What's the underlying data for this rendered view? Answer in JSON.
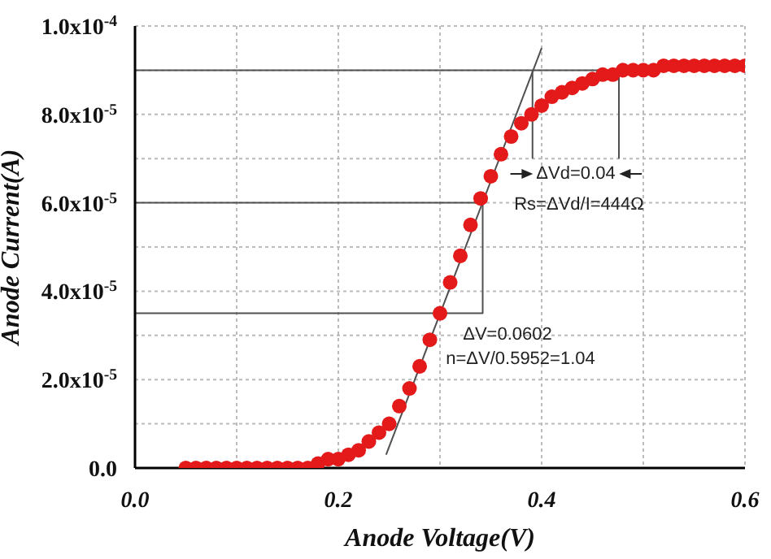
{
  "chart_data": {
    "type": "scatter",
    "xlabel": "Anode Voltage(V)",
    "ylabel": "Anode Current(A)",
    "xlim": [
      0,
      0.6
    ],
    "ylim": [
      0,
      0.0001
    ],
    "xticks": [
      {
        "value": 0,
        "label": "0.0"
      },
      {
        "value": 0.1,
        "label": null
      },
      {
        "value": 0.2,
        "label": "0.2"
      },
      {
        "value": 0.3,
        "label": null
      },
      {
        "value": 0.4,
        "label": "0.4"
      },
      {
        "value": 0.5,
        "label": null
      },
      {
        "value": 0.6,
        "label": "0.6"
      }
    ],
    "yticks": [
      {
        "value": 0,
        "label": "0.0"
      },
      {
        "value": 1e-05,
        "label": null
      },
      {
        "value": 2e-05,
        "label": "2.0x10$^{-5}$"
      },
      {
        "value": 3e-05,
        "label": null
      },
      {
        "value": 4e-05,
        "label": "4.0x10$^{-5}$"
      },
      {
        "value": 5e-05,
        "label": null
      },
      {
        "value": 6e-05,
        "label": "6.0x10$^{-5}$"
      },
      {
        "value": 7e-05,
        "label": null
      },
      {
        "value": 8e-05,
        "label": "8.0x10$^{-5}$"
      },
      {
        "value": 9e-05,
        "label": null
      },
      {
        "value": 0.0001,
        "label": "1.0x10$^{-4}$"
      }
    ],
    "grid": true,
    "x": [
      0.05,
      0.06,
      0.07,
      0.08,
      0.09,
      0.1,
      0.11,
      0.12,
      0.13,
      0.14,
      0.15,
      0.16,
      0.17,
      0.18,
      0.19,
      0.2,
      0.21,
      0.22,
      0.23,
      0.24,
      0.25,
      0.26,
      0.27,
      0.28,
      0.29,
      0.3,
      0.31,
      0.32,
      0.33,
      0.34,
      0.35,
      0.36,
      0.37,
      0.38,
      0.39,
      0.4,
      0.41,
      0.42,
      0.43,
      0.44,
      0.45,
      0.46,
      0.47,
      0.48,
      0.49,
      0.5,
      0.51,
      0.52,
      0.53,
      0.54,
      0.55,
      0.56,
      0.57,
      0.58,
      0.59,
      0.6
    ],
    "series": [
      {
        "color": "#e41a1a",
        "marker": "circle",
        "values": [
          0,
          0,
          0,
          0,
          0,
          0,
          0,
          0,
          0,
          0,
          0,
          0,
          0,
          1e-06,
          2e-06,
          2e-06,
          3e-06,
          4e-06,
          6e-06,
          8e-06,
          1e-05,
          1.4e-05,
          1.8e-05,
          2.3e-05,
          2.9e-05,
          3.5e-05,
          4.2e-05,
          4.8e-05,
          5.5e-05,
          6.1e-05,
          6.6e-05,
          7.1e-05,
          7.5e-05,
          7.8e-05,
          8e-05,
          8.2e-05,
          8.4e-05,
          8.5e-05,
          8.6e-05,
          8.7e-05,
          8.8e-05,
          8.9e-05,
          8.9e-05,
          9e-05,
          9e-05,
          9e-05,
          9e-05,
          9.1e-05,
          9.1e-05,
          9.1e-05,
          9.1e-05,
          9.1e-05,
          9.1e-05,
          9.1e-05,
          9.1e-05,
          9.1e-05
        ]
      },
      {
        "type": "line",
        "color": "#505050",
        "marker": "none",
        "x": [
          0.247,
          0.4
        ],
        "values": [
          3e-06,
          9.5e-05
        ]
      },
      {
        "type": "line",
        "color": "#505050",
        "marker": "none",
        "x": [
          0,
          0.342,
          0.342,
          0
        ],
        "values": [
          6e-05,
          6e-05,
          3.5e-05,
          3.5e-05
        ]
      },
      {
        "type": "line",
        "color": "#505050",
        "marker": "none",
        "x": [
          0.391,
          0.391
        ],
        "values": [
          9e-05,
          7e-05
        ]
      },
      {
        "type": "line",
        "color": "#505050",
        "marker": "none",
        "x": [
          0.476,
          0.476
        ],
        "values": [
          9e-05,
          7e-05
        ]
      }
    ],
    "ref_lines": [
      {
        "axis": "y",
        "value": 9e-05,
        "color": "#505050"
      }
    ],
    "annotations": [
      "ΔVd=0.04",
      "Rs=ΔVd/I=444Ω",
      "ΔV=0.0602",
      "n=ΔV/0.5952=1.04"
    ]
  }
}
